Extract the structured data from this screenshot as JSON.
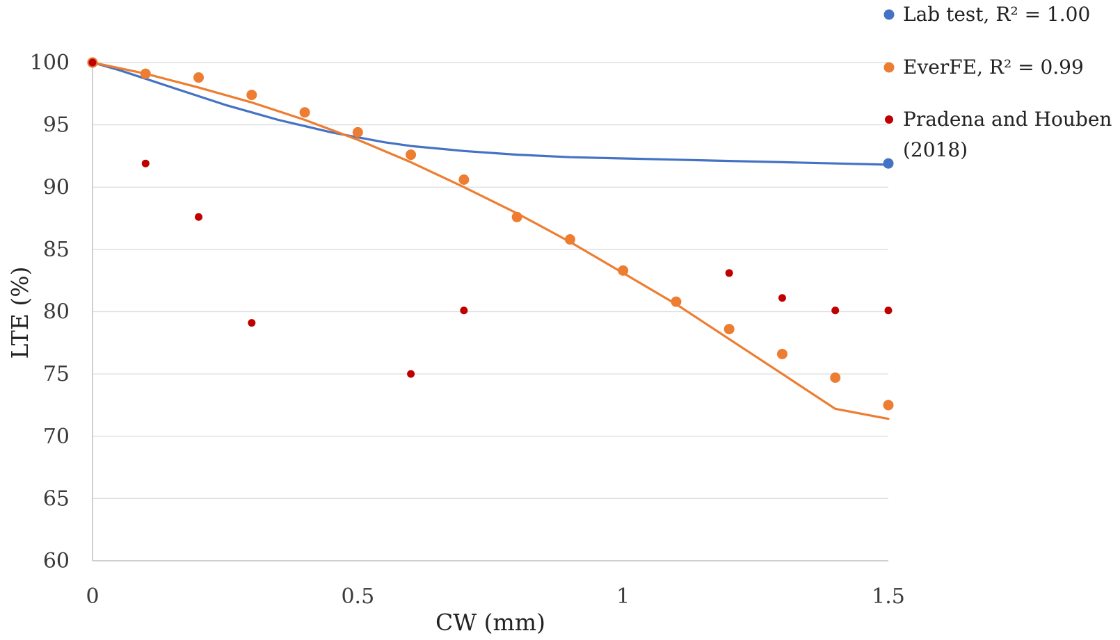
{
  "chart_data": {
    "type": "scatter",
    "title": "",
    "xlabel": "CW (mm)",
    "ylabel": "LTE (%)",
    "xlim": [
      0,
      1.5
    ],
    "ylim": [
      60,
      100
    ],
    "xticks": [
      0,
      0.5,
      1,
      1.5
    ],
    "xtick_labels": [
      "0",
      "0.5",
      "1",
      "1.5"
    ],
    "yticks": [
      60,
      65,
      70,
      75,
      80,
      85,
      90,
      95,
      100
    ],
    "ytick_labels": [
      "60",
      "65",
      "70",
      "75",
      "80",
      "85",
      "90",
      "95",
      "100"
    ],
    "grid": "horizontal",
    "legend_position": "top-right",
    "series": [
      {
        "name": "Lab test, R² = 1.00",
        "legend_label": "Lab test, R² = 1.00",
        "color": "#4472C4",
        "points": [
          [
            0,
            100
          ],
          [
            1.5,
            91.9
          ]
        ],
        "trendline": [
          [
            0,
            100
          ],
          [
            0.05,
            99.4
          ],
          [
            0.1,
            98.7
          ],
          [
            0.15,
            98.0
          ],
          [
            0.2,
            97.3
          ],
          [
            0.25,
            96.6
          ],
          [
            0.3,
            96.0
          ],
          [
            0.35,
            95.4
          ],
          [
            0.4,
            94.9
          ],
          [
            0.45,
            94.4
          ],
          [
            0.5,
            94.0
          ],
          [
            0.55,
            93.6
          ],
          [
            0.6,
            93.3
          ],
          [
            0.7,
            92.9
          ],
          [
            0.8,
            92.6
          ],
          [
            0.9,
            92.4
          ],
          [
            1.0,
            92.3
          ],
          [
            1.1,
            92.2
          ],
          [
            1.2,
            92.1
          ],
          [
            1.3,
            92.0
          ],
          [
            1.4,
            91.9
          ],
          [
            1.5,
            91.8
          ]
        ]
      },
      {
        "name": "EverFE, R² = 0.99",
        "legend_label": "EverFE, R² = 0.99",
        "color": "#ED7D31",
        "points": [
          [
            0,
            100
          ],
          [
            0.1,
            99.1
          ],
          [
            0.2,
            98.8
          ],
          [
            0.3,
            97.4
          ],
          [
            0.4,
            96.0
          ],
          [
            0.5,
            94.4
          ],
          [
            0.6,
            92.6
          ],
          [
            0.7,
            90.6
          ],
          [
            0.8,
            87.6
          ],
          [
            0.9,
            85.8
          ],
          [
            1.0,
            83.3
          ],
          [
            1.1,
            80.8
          ],
          [
            1.2,
            78.6
          ],
          [
            1.3,
            76.6
          ],
          [
            1.4,
            74.7
          ],
          [
            1.5,
            72.5
          ]
        ],
        "trendline": [
          [
            0,
            100
          ],
          [
            0.1,
            99.1
          ],
          [
            0.2,
            98.0
          ],
          [
            0.3,
            96.8
          ],
          [
            0.4,
            95.4
          ],
          [
            0.5,
            93.8
          ],
          [
            0.6,
            92.0
          ],
          [
            0.7,
            90.0
          ],
          [
            0.8,
            87.9
          ],
          [
            0.9,
            85.6
          ],
          [
            1.0,
            83.1
          ],
          [
            1.1,
            80.6
          ],
          [
            1.2,
            77.8
          ],
          [
            1.3,
            75.0
          ],
          [
            1.4,
            72.2
          ],
          [
            1.5,
            71.4
          ]
        ]
      },
      {
        "name": "Pradena and Houben (2018)",
        "legend_label_lines": [
          "Pradena and Houben",
          "(2018)"
        ],
        "color": "#C00000",
        "points": [
          [
            0,
            100
          ],
          [
            0.1,
            91.9
          ],
          [
            0.2,
            87.6
          ],
          [
            0.3,
            79.1
          ],
          [
            0.6,
            75.0
          ],
          [
            0.7,
            80.1
          ],
          [
            1.2,
            83.1
          ],
          [
            1.3,
            81.1
          ],
          [
            1.4,
            80.1
          ],
          [
            1.5,
            80.1
          ]
        ]
      }
    ]
  }
}
